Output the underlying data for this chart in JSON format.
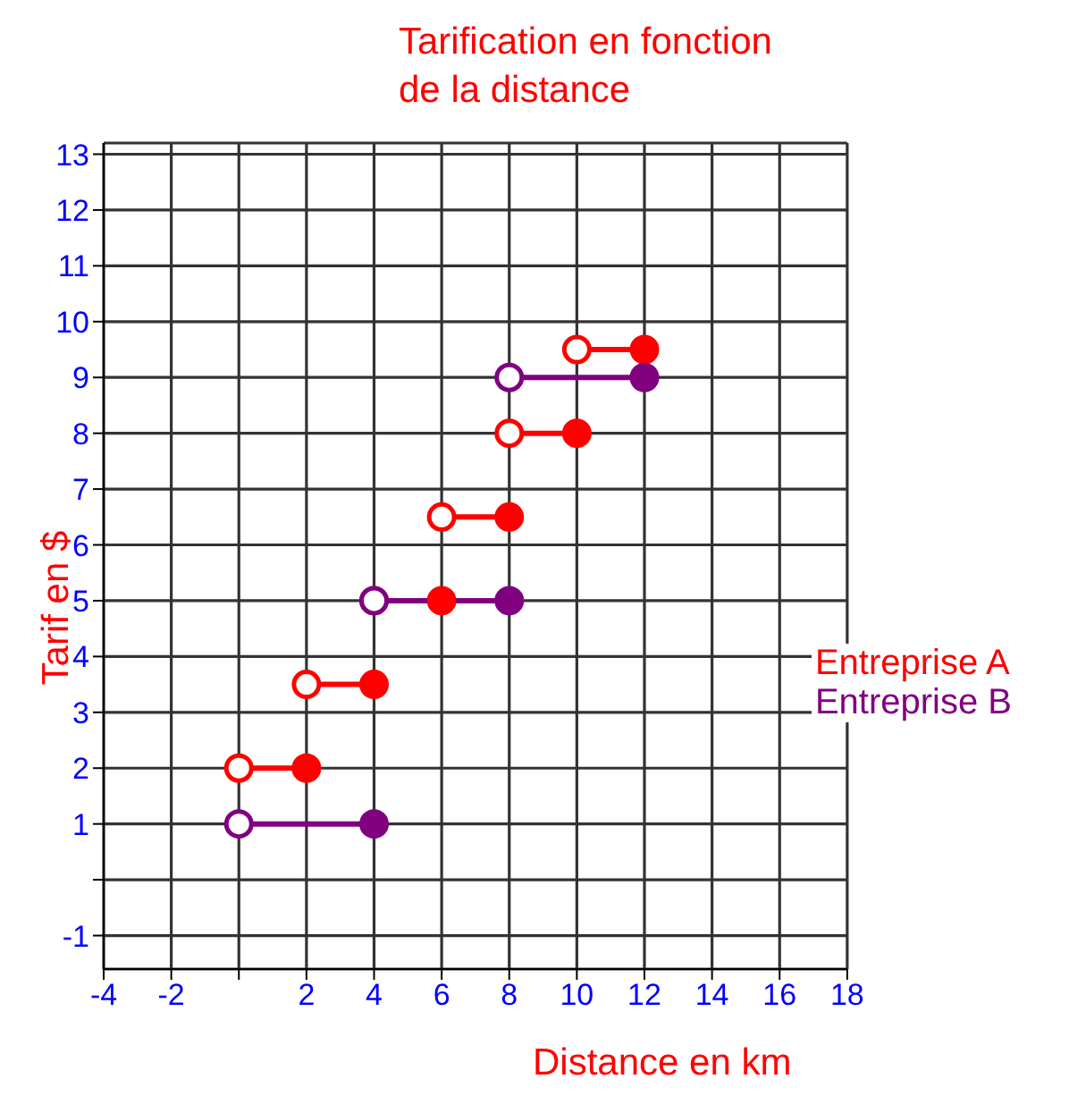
{
  "chart_data": {
    "type": "line",
    "title": "Tarification en fonction\nde la distance",
    "xlabel": "Distance en km",
    "ylabel": "Tarif en $",
    "series": [
      {
        "name": "Entreprise A",
        "color": "#ff0000",
        "x": [
          0,
          2,
          null,
          2,
          4,
          null,
          4,
          6,
          null,
          6,
          8,
          null,
          8,
          10,
          null,
          10,
          12
        ],
        "values": [
          2,
          2,
          null,
          3.5,
          3.5,
          null,
          5,
          5,
          null,
          6.5,
          6.5,
          null,
          8,
          8,
          null,
          9.5,
          9.5
        ]
      },
      {
        "name": "Entreprise B",
        "color": "#800080",
        "x": [
          0,
          4,
          null,
          4,
          8,
          null,
          8,
          12
        ],
        "values": [
          1,
          1,
          null,
          5,
          5,
          null,
          9,
          9
        ]
      }
    ],
    "xlim": [
      -4,
      18
    ],
    "xticks": [
      -4,
      -2,
      {
        "value": 0,
        "label": null
      },
      2,
      4,
      6,
      8,
      10,
      12,
      14,
      16,
      18
    ],
    "ylim": [
      -1.6,
      13.2
    ],
    "yticks": [
      -1,
      {
        "value": 0,
        "label": null
      },
      1,
      2,
      3,
      4,
      5,
      6,
      7,
      8,
      9,
      10,
      11,
      12,
      13
    ],
    "grid": true,
    "legend": "right",
    "marker": "circle",
    "line_style": "solid"
  }
}
